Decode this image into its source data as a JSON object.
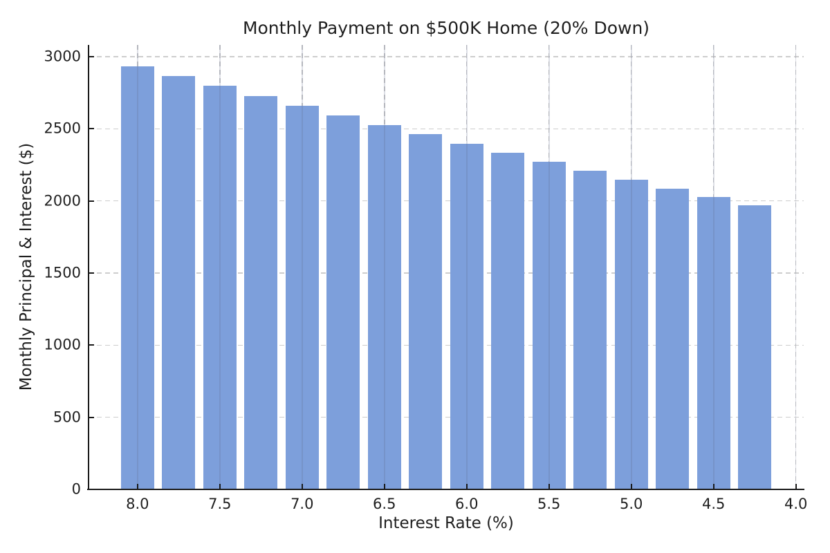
{
  "chart_data": {
    "type": "bar",
    "title": "Monthly Payment on $500K Home (20% Down)",
    "xlabel": "Interest Rate (%)",
    "ylabel": "Monthly Principal & Interest ($)",
    "x": [
      8.0,
      7.75,
      7.5,
      7.25,
      7.0,
      6.75,
      6.5,
      6.25,
      6.0,
      5.75,
      5.5,
      5.25,
      5.0,
      4.75,
      4.5,
      4.25
    ],
    "values": [
      2935.06,
      2865.81,
      2796.86,
      2728.71,
      2661.21,
      2594.39,
      2528.27,
      2462.87,
      2398.2,
      2334.29,
      2271.16,
      2208.81,
      2147.29,
      2086.59,
      2026.74,
      1967.76
    ],
    "x_ticks": [
      8.0,
      7.5,
      7.0,
      6.5,
      6.0,
      5.5,
      5.0,
      4.5,
      4.0
    ],
    "x_tick_labels": [
      "8.0",
      "7.5",
      "7.0",
      "6.5",
      "6.0",
      "5.5",
      "5.0",
      "4.5",
      "4.0"
    ],
    "y_ticks": [
      0,
      500,
      1000,
      1500,
      2000,
      2500,
      3000
    ],
    "y_tick_labels": [
      "0",
      "500",
      "1000",
      "1500",
      "2000",
      "2500",
      "3000"
    ],
    "xlim": [
      8.2975,
      3.9525
    ],
    "ylim": [
      0,
      3082
    ],
    "x_axis_reversed": true,
    "bar_width_units": 0.2,
    "grid": "dashed",
    "legend": null,
    "colors": {
      "bar": "#7d9fdb",
      "grid": "#cdcdcd",
      "spine": "#1a1a1a",
      "text": "#1f1f1f",
      "background": "#ffffff"
    }
  }
}
